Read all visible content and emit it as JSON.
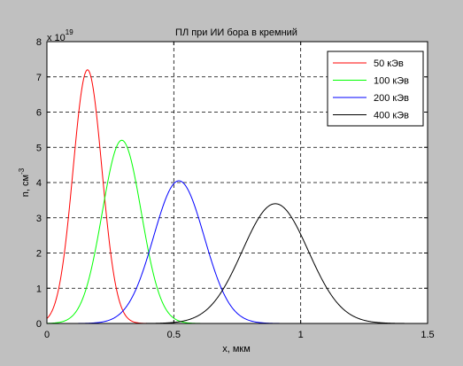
{
  "chart_data": {
    "type": "line",
    "title": "ПЛ при ИИ бора в кремний",
    "xlabel": "x, мкм",
    "ylabel": "n, см",
    "ylabel_sup": "-3",
    "y_exponent_base": "x 10",
    "y_exponent_power": "19",
    "xlim": [
      0,
      1.5
    ],
    "ylim": [
      0,
      8
    ],
    "x_ticks": [
      0,
      0.5,
      1,
      1.5
    ],
    "x_tick_labels": [
      "0",
      "0.5",
      "1",
      "1.5"
    ],
    "y_ticks": [
      0,
      1,
      2,
      3,
      4,
      5,
      6,
      7,
      8
    ],
    "y_tick_labels": [
      "0",
      "1",
      "2",
      "3",
      "4",
      "5",
      "6",
      "7",
      "8"
    ],
    "grid": true,
    "grid_style": "dashed",
    "legend_position": "top-right",
    "series": [
      {
        "name": "50 кЭв",
        "color": "#ff0000",
        "shape": "gaussian",
        "peak_x": 0.16,
        "peak_y": 7.2,
        "sigma": 0.057
      },
      {
        "name": "100 кЭв",
        "color": "#00ff00",
        "shape": "gaussian",
        "peak_x": 0.295,
        "peak_y": 5.2,
        "sigma": 0.077
      },
      {
        "name": "200 кЭв",
        "color": "#0000ff",
        "shape": "gaussian",
        "peak_x": 0.52,
        "peak_y": 4.05,
        "sigma": 0.1
      },
      {
        "name": "400 кЭв",
        "color": "#000000",
        "shape": "gaussian",
        "peak_x": 0.9,
        "peak_y": 3.4,
        "sigma": 0.13
      }
    ]
  }
}
